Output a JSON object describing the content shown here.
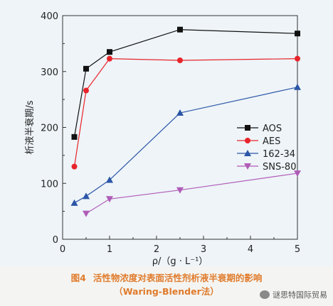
{
  "figure": {
    "caption_number": "图4",
    "caption_line1": "活性物浓度对表面活性剂析液半衰期的影响",
    "caption_line2": "（Waring-Blender法）",
    "watermark": "谜思特国际贸易"
  },
  "chart_data": {
    "type": "line",
    "xlabel": "ρ/（g · L⁻¹）",
    "ylabel": "析液半衰期/s",
    "xlim": [
      0,
      5
    ],
    "ylim": [
      0,
      400
    ],
    "x_ticks": [
      "0",
      "1",
      "2",
      "3",
      "4",
      "5"
    ],
    "y_ticks": [
      "0",
      "100",
      "200",
      "300",
      "400"
    ],
    "grid": false,
    "legend_position": "right-middle",
    "series": [
      {
        "name": "AOS",
        "color": "#111111",
        "marker": "square",
        "points": [
          [
            0.25,
            183
          ],
          [
            0.5,
            305
          ],
          [
            1.0,
            335
          ],
          [
            2.5,
            375
          ],
          [
            5.0,
            368
          ]
        ]
      },
      {
        "name": "AES",
        "color": "#e8242b",
        "marker": "circle",
        "points": [
          [
            0.25,
            130
          ],
          [
            0.5,
            266
          ],
          [
            1.0,
            323
          ],
          [
            2.5,
            320
          ],
          [
            5.0,
            323
          ]
        ]
      },
      {
        "name": "162-34",
        "color": "#2b55a6",
        "marker": "triangle-up",
        "points": [
          [
            0.25,
            65
          ],
          [
            0.5,
            77
          ],
          [
            1.0,
            106
          ],
          [
            2.5,
            226
          ],
          [
            5.0,
            272
          ]
        ]
      },
      {
        "name": "SNS-80",
        "color": "#b05cb8",
        "marker": "triangle-down",
        "points": [
          [
            0.5,
            46
          ],
          [
            1.0,
            72
          ],
          [
            2.5,
            88
          ],
          [
            5.0,
            118
          ]
        ]
      }
    ]
  }
}
